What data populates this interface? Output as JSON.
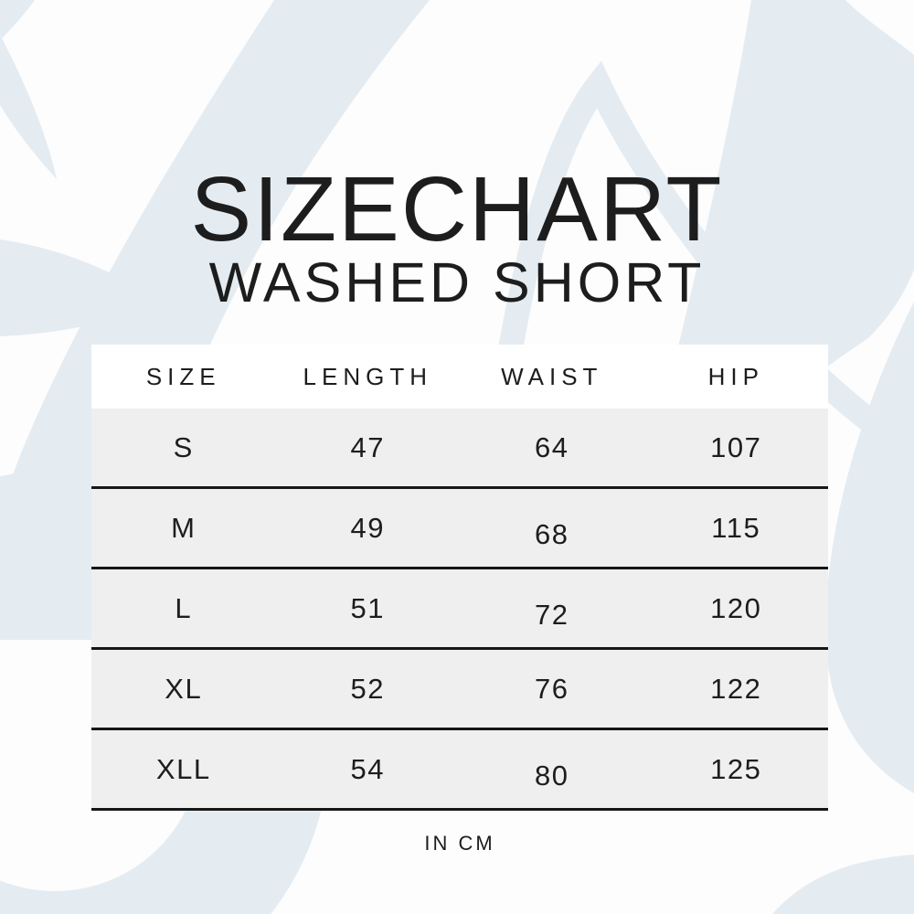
{
  "title": {
    "main": "SIZECHART",
    "subtitle": "WASHED SHORT"
  },
  "footnote": "IN CM",
  "colors": {
    "watermark": "#e4ecf2",
    "row_background": "#efefef",
    "divider_line": "#161616",
    "text": "#1d1d1d"
  },
  "chart_data": {
    "type": "table",
    "title": "SIZECHART",
    "subtitle": "WASHED SHORT",
    "unit": "IN CM",
    "columns": [
      "SIZE",
      "LENGTH",
      "WAIST",
      "HIP"
    ],
    "rows": [
      [
        "S",
        "47",
        "64",
        "107"
      ],
      [
        "M",
        "49",
        "68",
        "115"
      ],
      [
        "L",
        "51",
        "72",
        "120"
      ],
      [
        "XL",
        "52",
        "76",
        "122"
      ],
      [
        "XLL",
        "54",
        "80",
        "125"
      ]
    ]
  }
}
